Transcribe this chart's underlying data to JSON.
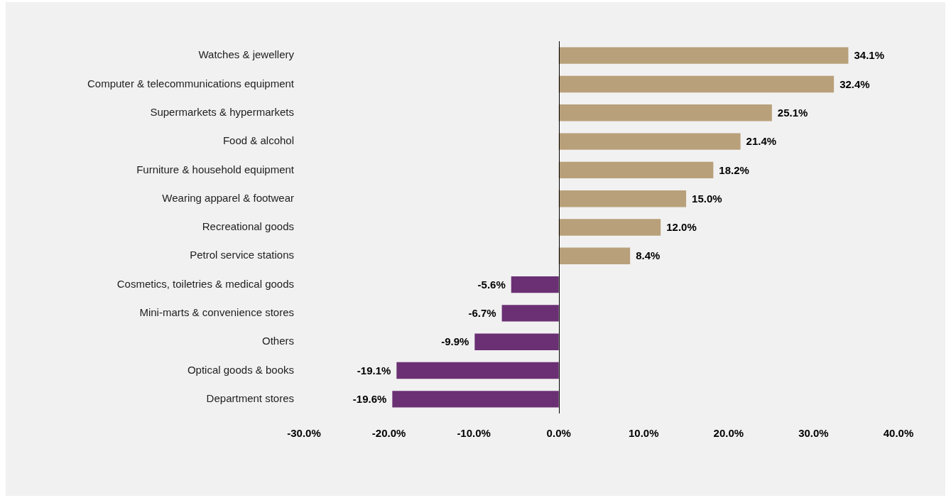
{
  "chart_data": {
    "type": "bar",
    "orientation": "horizontal",
    "categories": [
      "Watches & jewellery",
      "Computer & telecommunications equipment",
      "Supermarkets & hypermarkets",
      "Food & alcohol",
      "Furniture & household equipment",
      "Wearing apparel & footwear",
      "Recreational goods",
      "Petrol service stations",
      "Cosmetics, toiletries & medical goods",
      "Mini-marts & convenience stores",
      "Others",
      "Optical goods & books",
      "Department stores"
    ],
    "values": [
      34.1,
      32.4,
      25.1,
      21.4,
      18.2,
      15.0,
      12.0,
      8.4,
      -5.6,
      -6.7,
      -9.9,
      -19.1,
      -19.6
    ],
    "value_labels": [
      "34.1%",
      "32.4%",
      "25.1%",
      "21.4%",
      "18.2%",
      "15.0%",
      "12.0%",
      "8.4%",
      "-5.6%",
      "-6.7%",
      "-9.9%",
      "-19.1%",
      "-19.6%"
    ],
    "colors": [
      "#b8a07a",
      "#b8a07a",
      "#b8a07a",
      "#b8a07a",
      "#b8a07a",
      "#b8a07a",
      "#b8a07a",
      "#b8a07a",
      "#6b3074",
      "#6b3074",
      "#6b3074",
      "#6b3074",
      "#6b3074"
    ],
    "xlim": [
      -30,
      40
    ],
    "xticks": [
      {
        "value": -30,
        "label": "-30.0%"
      },
      {
        "value": -20,
        "label": "-20.0%"
      },
      {
        "value": -10,
        "label": "-10.0%"
      },
      {
        "value": 0,
        "label": "0.0%"
      },
      {
        "value": 10,
        "label": "10.0%"
      },
      {
        "value": 20,
        "label": "20.0%"
      },
      {
        "value": 30,
        "label": "30.0%"
      },
      {
        "value": 40,
        "label": "40.0%"
      }
    ],
    "ref_lines": [
      {
        "axis": "x",
        "value": 0,
        "color": "#000000"
      }
    ],
    "grid": false,
    "legend": false
  }
}
